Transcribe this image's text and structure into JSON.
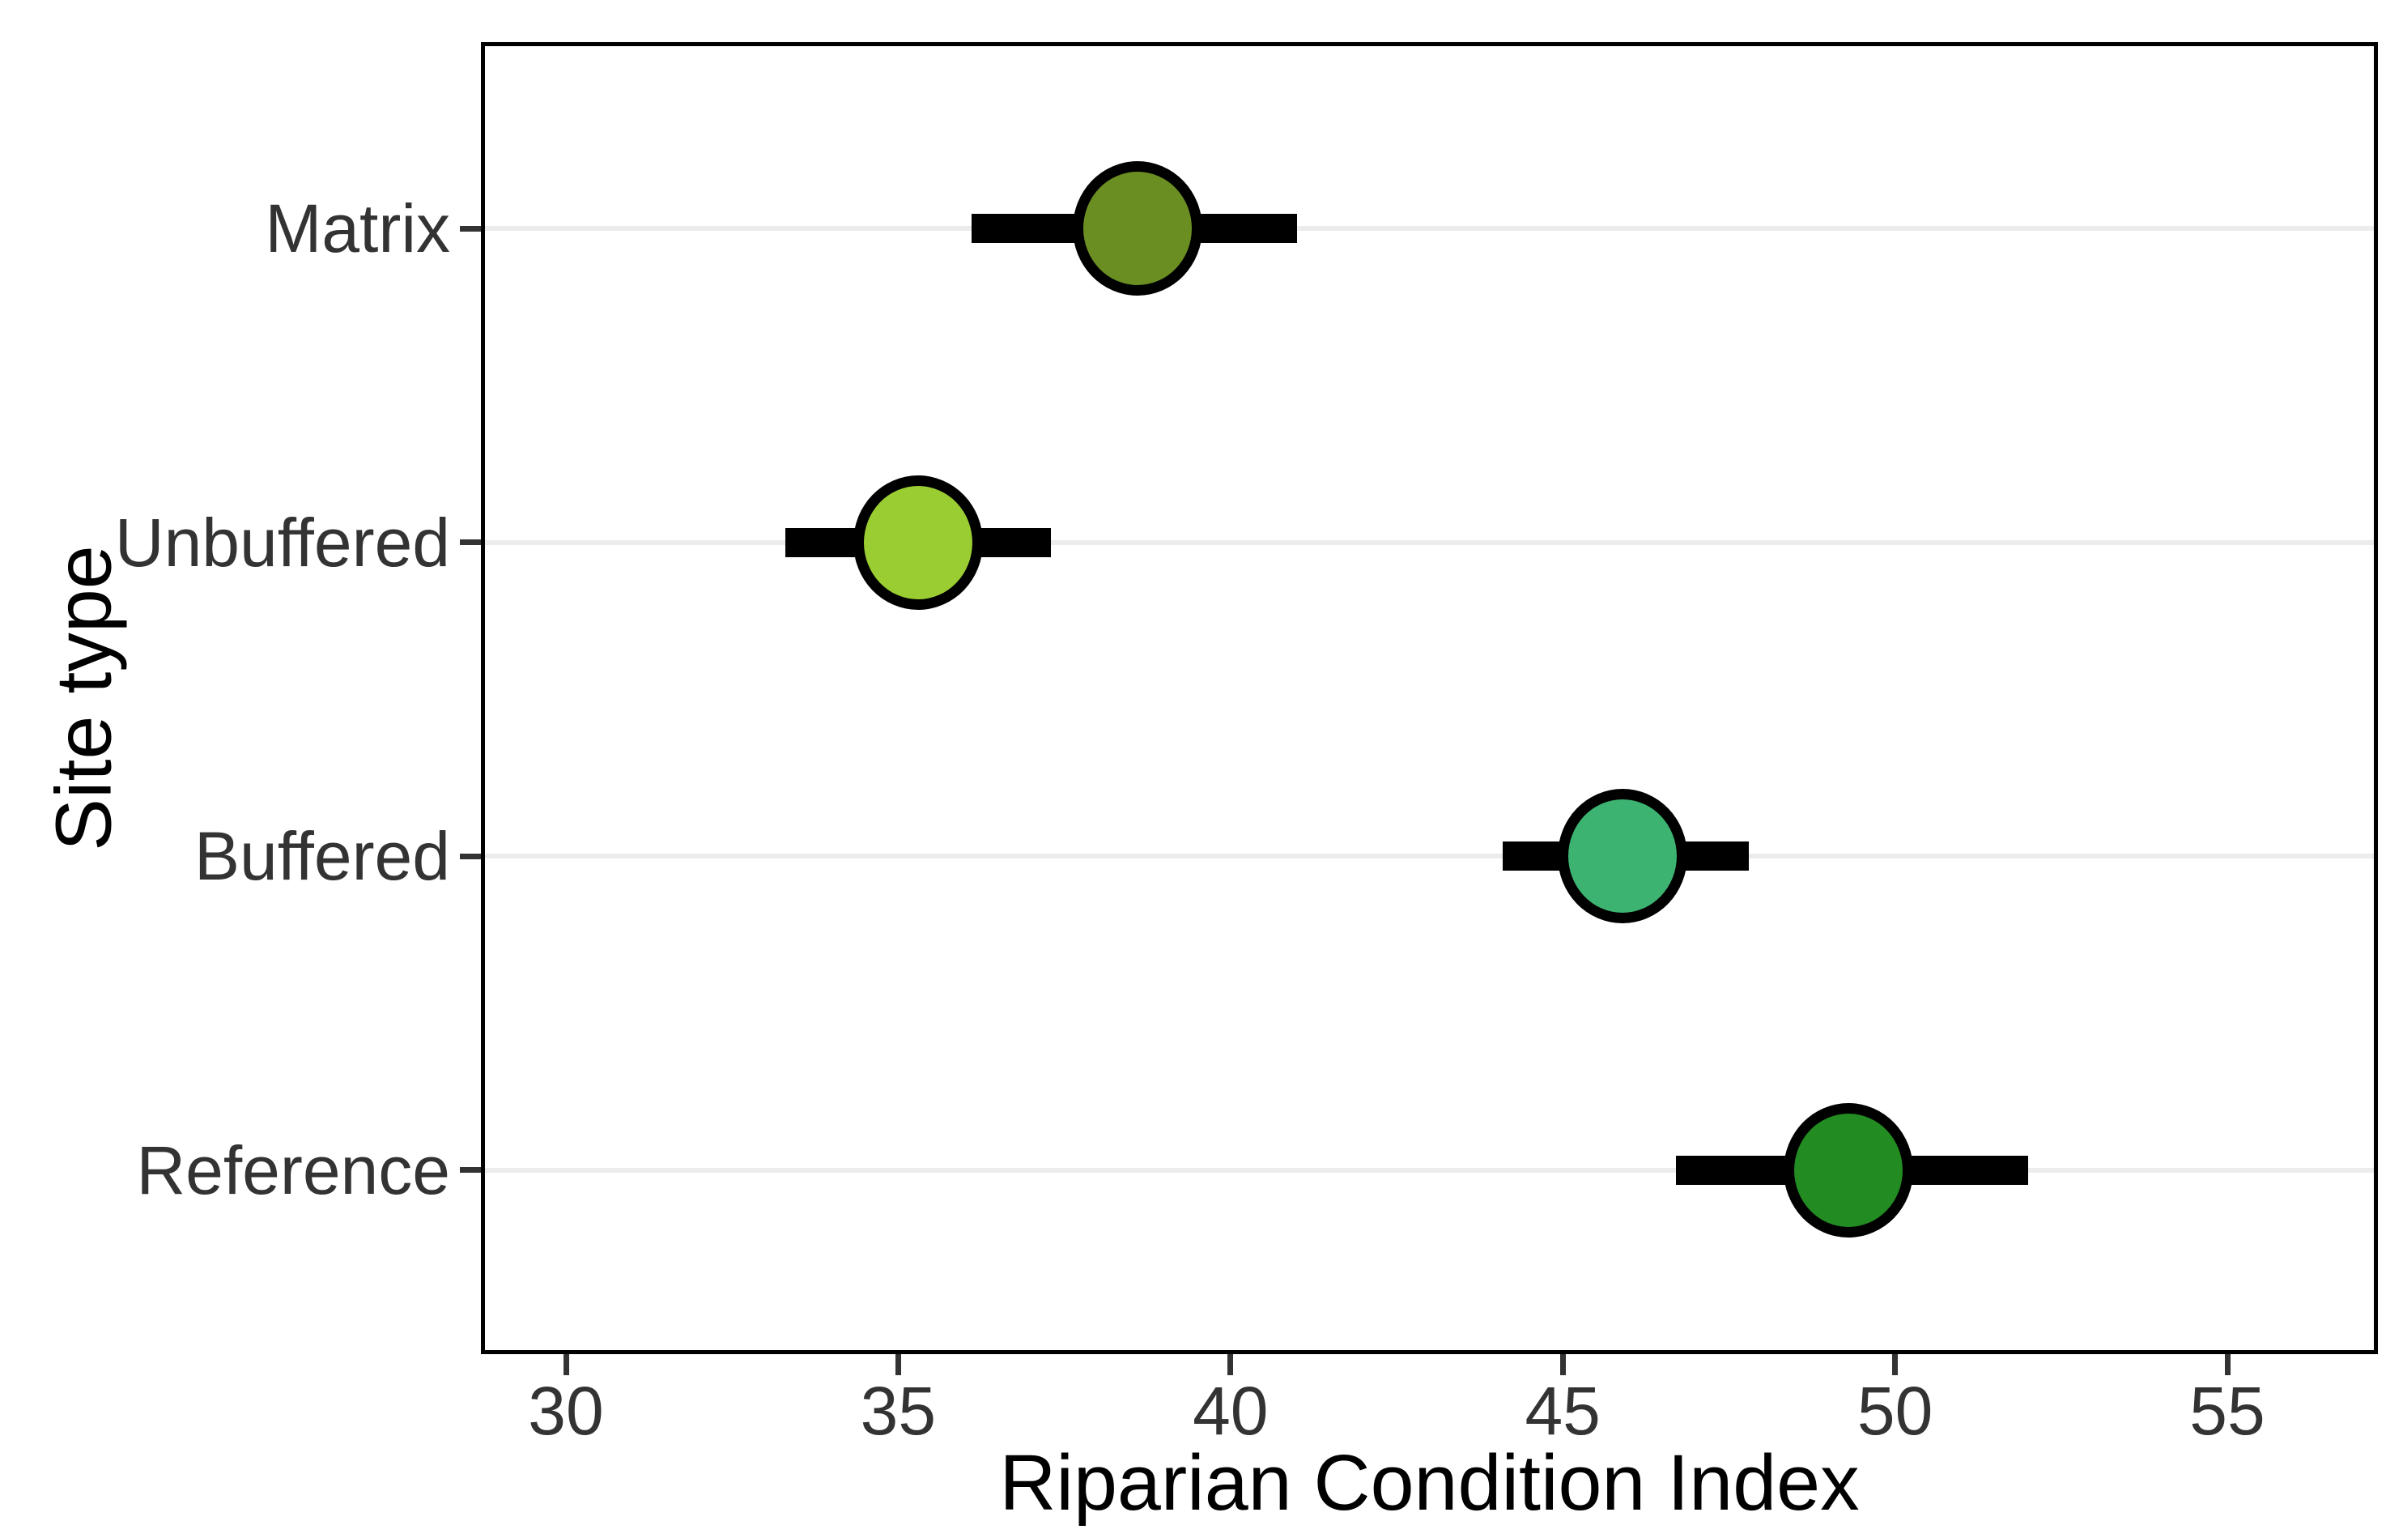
{
  "chart_data": {
    "type": "scatter",
    "subtype": "dot-plot-with-horizontal-error-bars",
    "title": "",
    "xlabel": "Riparian Condition Index",
    "ylabel": "Site type",
    "x_ticks": [
      30,
      35,
      40,
      45,
      50,
      55
    ],
    "xlim": [
      28.7,
      57.3
    ],
    "grid": "horizontal-major-only",
    "legend": "none",
    "categories_top_to_bottom": [
      "Matrix",
      "Unbuffered",
      "Buffered",
      "Reference"
    ],
    "series": [
      {
        "category": "Matrix",
        "mean": 38.6,
        "ci_low": 36.1,
        "ci_high": 41.0,
        "color": "#6B8E23"
      },
      {
        "category": "Unbuffered",
        "mean": 35.3,
        "ci_low": 33.3,
        "ci_high": 37.3,
        "color": "#9ACD32"
      },
      {
        "category": "Buffered",
        "mean": 45.9,
        "ci_low": 44.1,
        "ci_high": 47.8,
        "color": "#3CB371"
      },
      {
        "category": "Reference",
        "mean": 49.3,
        "ci_low": 46.7,
        "ci_high": 52.0,
        "color": "#228B22"
      }
    ],
    "style": {
      "marker_outline_color": "#000000",
      "errorbar_color": "#000000",
      "panel_border_color": "#000000",
      "gridline_color": "#ececec",
      "tick_color": "#333333",
      "axis_text_color": "#333333",
      "axis_title_color": "#000000",
      "background_color": "#ffffff"
    }
  }
}
